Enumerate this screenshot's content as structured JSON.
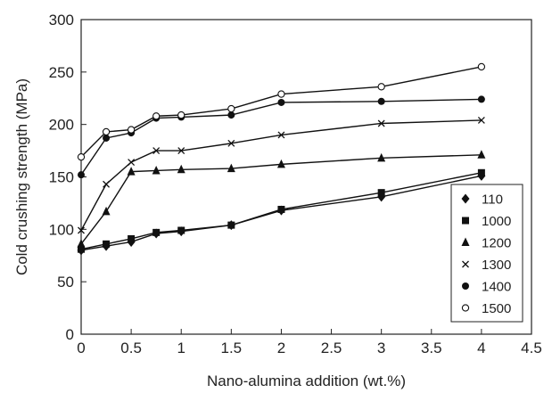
{
  "chart_data": {
    "type": "line",
    "title": "",
    "xlabel": "Nano-alumina addition (wt.%)",
    "ylabel": "Cold crushing strength (MPa)",
    "xlim": [
      0,
      4.5
    ],
    "ylim": [
      0,
      300
    ],
    "x_ticks": [
      "0",
      "0.5",
      "1",
      "1.5",
      "2",
      "2.5",
      "3",
      "3.5",
      "4",
      "4.5"
    ],
    "y_ticks": [
      "0",
      "50",
      "100",
      "150",
      "200",
      "250",
      "300"
    ],
    "grid": false,
    "legend_position": "bottom-right",
    "x": [
      0,
      0.25,
      0.5,
      0.75,
      1,
      1.5,
      2,
      3,
      4
    ],
    "series": [
      {
        "name": "110",
        "marker": "diamond",
        "values": [
          80,
          84,
          88,
          96,
          98,
          104,
          118,
          131,
          151
        ]
      },
      {
        "name": "1000",
        "marker": "square",
        "values": [
          81,
          86,
          91,
          97,
          99,
          104,
          119,
          135,
          154
        ]
      },
      {
        "name": "1200",
        "marker": "triangle",
        "values": [
          86,
          117,
          155,
          156,
          157,
          158,
          162,
          168,
          171
        ]
      },
      {
        "name": "1300",
        "marker": "cross",
        "values": [
          99,
          143,
          164,
          175,
          175,
          182,
          190,
          201,
          204
        ]
      },
      {
        "name": "1400",
        "marker": "filled-circle",
        "values": [
          152,
          187,
          192,
          206,
          207,
          209,
          221,
          222,
          224
        ]
      },
      {
        "name": "1500",
        "marker": "open-circle",
        "values": [
          169,
          193,
          195,
          208,
          209,
          215,
          229,
          236,
          255
        ]
      }
    ]
  }
}
